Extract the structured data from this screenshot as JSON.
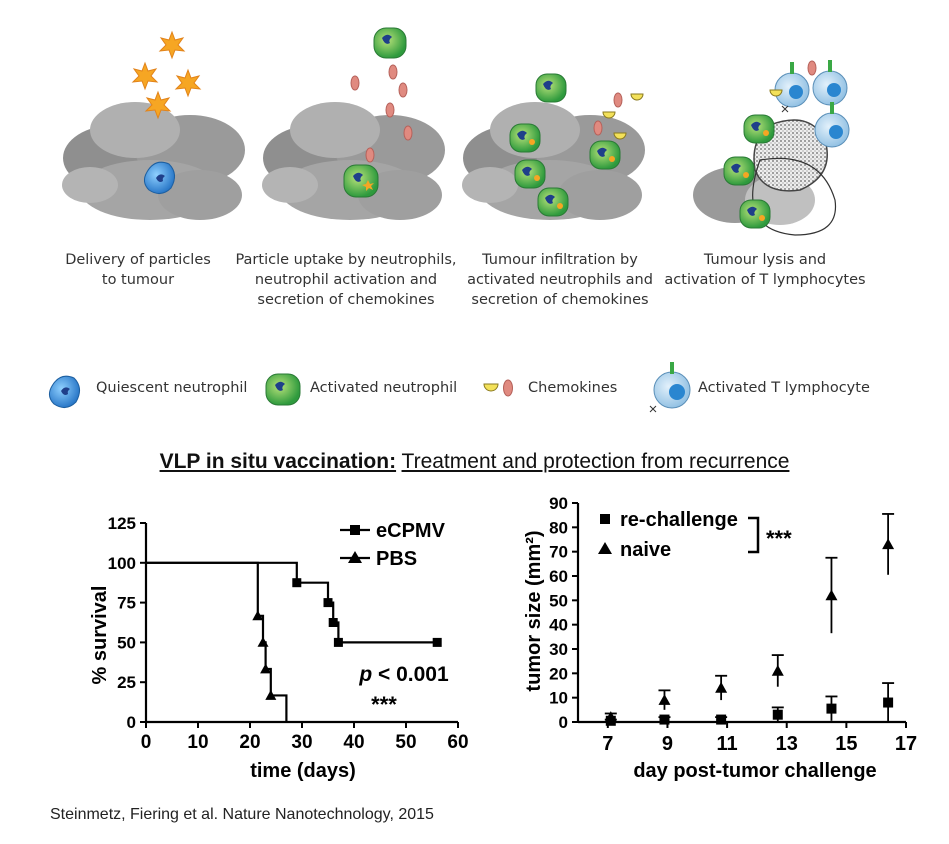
{
  "figure": {
    "panels": [
      {
        "line1": "Delivery of particles",
        "line2": "to tumour",
        "line3": ""
      },
      {
        "line1": "Particle uptake by neutrophils,",
        "line2": "neutrophil activation and",
        "line3": "secretion of chemokines"
      },
      {
        "line1": "Tumour infiltration by",
        "line2": "activated neutrophils and",
        "line3": "secretion of chemokines"
      },
      {
        "line1": "Tumour lysis and",
        "line2": "activation of T lymphocytes",
        "line3": ""
      }
    ],
    "legend": {
      "quiescent": "Quiescent neutrophil",
      "activated": "Activated neutrophil",
      "chemokines": "Chemokines",
      "tcell": "Activated T lymphocyte"
    },
    "colors": {
      "quiescent_cell": "#3d8fd6",
      "activated_cell": "#4caf50",
      "chemokine": "#e08a80",
      "particle": "#f5a623",
      "tumour": "#9a9a9a",
      "tcell": "#a9cdea"
    }
  },
  "section_title": {
    "bold": "VLP in situ vaccination:",
    "plain": "Treatment and protection from recurrence"
  },
  "citation": "Steinmetz, Fiering et al. Nature Nanotechnology, 2015",
  "chart_data": [
    {
      "type": "line",
      "subtype": "kaplan-meier",
      "xlabel": "time (days)",
      "ylabel": "% survival",
      "xlim": [
        0,
        60
      ],
      "ylim": [
        0,
        125
      ],
      "xticks": [
        0,
        10,
        20,
        30,
        40,
        50,
        60
      ],
      "yticks": [
        0,
        25,
        50,
        75,
        100,
        125
      ],
      "series": [
        {
          "name": "eCPMV",
          "marker": "square",
          "steps": [
            [
              0,
              100
            ],
            [
              29,
              100
            ],
            [
              29,
              87.5
            ],
            [
              35,
              87.5
            ],
            [
              35,
              75
            ],
            [
              36,
              75
            ],
            [
              36,
              62.5
            ],
            [
              37,
              62.5
            ],
            [
              37,
              50
            ],
            [
              56,
              50
            ]
          ],
          "markers": [
            [
              29,
              87.5
            ],
            [
              35,
              75
            ],
            [
              36,
              62.5
            ],
            [
              37,
              50
            ],
            [
              56,
              50
            ]
          ]
        },
        {
          "name": "PBS",
          "marker": "triangle",
          "steps": [
            [
              0,
              100
            ],
            [
              21.5,
              100
            ],
            [
              21.5,
              66.7
            ],
            [
              22.5,
              66.7
            ],
            [
              22.5,
              50
            ],
            [
              23,
              50
            ],
            [
              23,
              33.3
            ],
            [
              24,
              33.3
            ],
            [
              24,
              16.7
            ],
            [
              27,
              16.7
            ],
            [
              27,
              0
            ]
          ],
          "markers": [
            [
              21.5,
              66.7
            ],
            [
              22.5,
              50
            ],
            [
              23,
              33.3
            ],
            [
              24,
              16.7
            ]
          ]
        }
      ],
      "annotations": {
        "pvalue_prefix": "p",
        "pvalue_rest": " < 0.001",
        "stars": "***"
      },
      "legend_position": "top-right",
      "grid": false
    },
    {
      "type": "scatter",
      "subtype": "mean-with-error-bars",
      "xlabel": "day post-tumor challenge",
      "ylabel": "tumor size (mm²)",
      "xlim": [
        6,
        17
      ],
      "ylim": [
        0,
        90
      ],
      "xticks": [
        7,
        9,
        11,
        13,
        15,
        17
      ],
      "yticks": [
        0,
        10,
        20,
        30,
        40,
        50,
        60,
        70,
        80,
        90
      ],
      "series": [
        {
          "name": "re-challenge",
          "marker": "square",
          "points": [
            {
              "x": 7.1,
              "y": 0.5,
              "err": 0.5
            },
            {
              "x": 8.9,
              "y": 1,
              "err": 1
            },
            {
              "x": 10.8,
              "y": 1,
              "err": 1
            },
            {
              "x": 12.7,
              "y": 3,
              "err": 3
            },
            {
              "x": 14.5,
              "y": 5.5,
              "err": 5
            },
            {
              "x": 16.4,
              "y": 8,
              "err": 8
            }
          ]
        },
        {
          "name": "naive",
          "marker": "triangle",
          "points": [
            {
              "x": 7.1,
              "y": 2,
              "err": 1.5
            },
            {
              "x": 8.9,
              "y": 9,
              "err": 4
            },
            {
              "x": 10.8,
              "y": 14,
              "err": 5
            },
            {
              "x": 12.7,
              "y": 21,
              "err": 6.5
            },
            {
              "x": 14.5,
              "y": 52,
              "err": 15.5
            },
            {
              "x": 16.4,
              "y": 73,
              "err": 12.5
            }
          ]
        }
      ],
      "annotations": {
        "stars": "***"
      },
      "legend_position": "top-left",
      "grid": false
    }
  ]
}
